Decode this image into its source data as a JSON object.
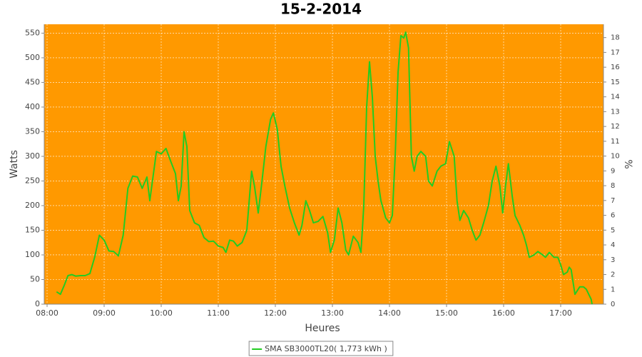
{
  "chart_data": {
    "type": "line",
    "title": "15-2-2014",
    "xlabel": "Heures",
    "ylabel": "Watts",
    "y2label": "%",
    "x": [
      "08:10",
      "08:14",
      "08:18",
      "08:22",
      "08:26",
      "08:30",
      "08:35",
      "08:40",
      "08:45",
      "08:50",
      "08:55",
      "09:00",
      "09:05",
      "09:10",
      "09:15",
      "09:20",
      "09:25",
      "09:30",
      "09:35",
      "09:40",
      "09:45",
      "09:48",
      "09:55",
      "10:00",
      "10:05",
      "10:10",
      "10:15",
      "10:18",
      "10:21",
      "10:24",
      "10:27",
      "10:30",
      "10:35",
      "10:40",
      "10:45",
      "10:50",
      "10:55",
      "11:00",
      "11:05",
      "11:08",
      "11:12",
      "11:16",
      "11:20",
      "11:25",
      "11:30",
      "11:35",
      "11:38",
      "11:42",
      "11:46",
      "11:50",
      "11:55",
      "11:58",
      "12:02",
      "12:06",
      "12:10",
      "12:15",
      "12:20",
      "12:25",
      "12:28",
      "12:32",
      "12:36",
      "12:40",
      "12:45",
      "12:50",
      "12:55",
      "12:58",
      "13:02",
      "13:06",
      "13:10",
      "13:14",
      "13:17",
      "13:22",
      "13:27",
      "13:30",
      "13:33",
      "13:36",
      "13:39",
      "13:42",
      "13:45",
      "13:48",
      "13:51",
      "13:56",
      "14:00",
      "14:03",
      "14:06",
      "14:09",
      "14:12",
      "14:15",
      "14:17",
      "14:20",
      "14:23",
      "14:26",
      "14:29",
      "14:33",
      "14:38",
      "14:41",
      "14:45",
      "14:50",
      "14:54",
      "14:59",
      "15:03",
      "15:08",
      "15:11",
      "15:14",
      "15:18",
      "15:23",
      "15:27",
      "15:31",
      "15:35",
      "15:39",
      "15:44",
      "15:48",
      "15:52",
      "15:56",
      "15:59",
      "16:02",
      "16:05",
      "16:09",
      "16:12",
      "16:17",
      "16:21",
      "16:24",
      "16:27",
      "16:32",
      "16:36",
      "16:41",
      "16:44",
      "16:48",
      "16:53",
      "16:57",
      "17:00",
      "17:03",
      "17:07",
      "17:09",
      "17:11",
      "17:15",
      "17:20",
      "17:24",
      "17:27",
      "17:32",
      "17:33"
    ],
    "series": [
      {
        "name": "SMA SB3000TL20( 1,773 kWh )",
        "color": "#22cc22",
        "values": [
          25,
          20,
          38,
          58,
          60,
          57,
          58,
          58,
          62,
          95,
          140,
          130,
          108,
          107,
          98,
          140,
          235,
          260,
          258,
          235,
          258,
          210,
          310,
          305,
          316,
          290,
          265,
          210,
          240,
          350,
          320,
          190,
          165,
          160,
          135,
          127,
          128,
          118,
          115,
          105,
          130,
          128,
          118,
          125,
          150,
          270,
          240,
          185,
          250,
          320,
          375,
          388,
          355,
          280,
          240,
          195,
          165,
          140,
          160,
          210,
          190,
          165,
          168,
          178,
          145,
          105,
          130,
          195,
          165,
          110,
          100,
          138,
          125,
          105,
          200,
          400,
          492,
          420,
          300,
          250,
          210,
          175,
          165,
          180,
          300,
          470,
          545,
          540,
          552,
          520,
          300,
          270,
          300,
          310,
          300,
          250,
          240,
          270,
          280,
          285,
          330,
          300,
          210,
          170,
          190,
          175,
          150,
          130,
          140,
          165,
          200,
          250,
          280,
          240,
          185,
          240,
          285,
          220,
          180,
          160,
          140,
          120,
          95,
          100,
          107,
          100,
          95,
          105,
          95,
          95,
          80,
          60,
          65,
          75,
          70,
          20,
          35,
          35,
          30,
          10,
          0
        ]
      }
    ],
    "xlim": [
      "07:57",
      "17:45"
    ],
    "xticks": [
      "08:00",
      "09:00",
      "10:00",
      "11:00",
      "12:00",
      "13:00",
      "14:00",
      "15:00",
      "16:00",
      "17:00"
    ],
    "ylim": [
      0,
      568
    ],
    "yticks": [
      0,
      50,
      100,
      150,
      200,
      250,
      300,
      350,
      400,
      450,
      500,
      550
    ],
    "y2lim": [
      0,
      18.9
    ],
    "y2ticks": [
      0,
      1,
      2,
      3,
      4,
      5,
      6,
      7,
      8,
      9,
      10,
      11,
      12,
      13,
      14,
      15,
      16,
      17,
      18
    ],
    "grid": true,
    "background": "#ff9900",
    "legend": "bottom"
  }
}
